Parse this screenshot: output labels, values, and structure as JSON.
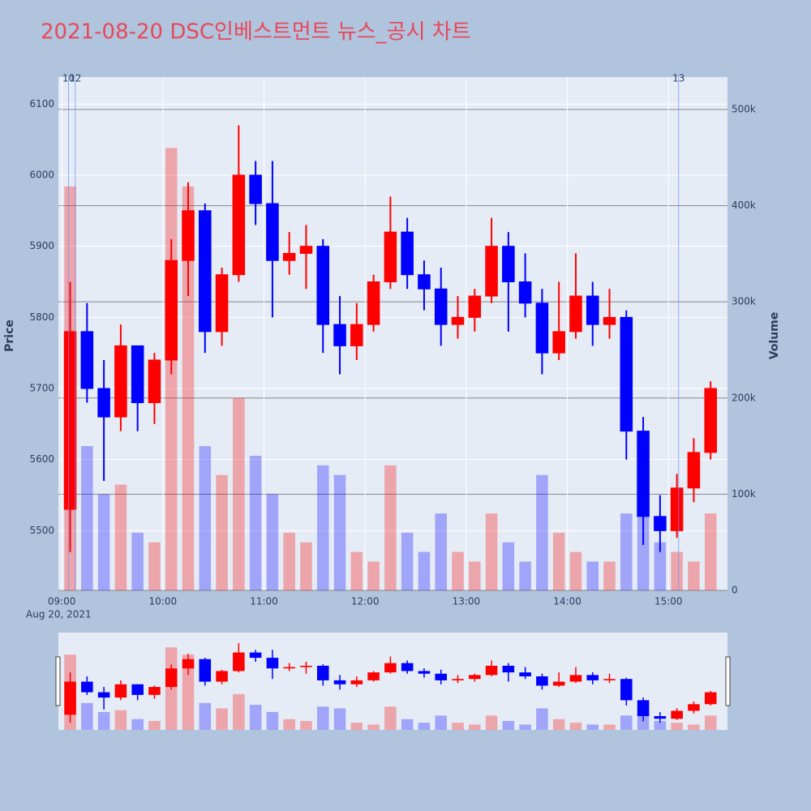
{
  "chart_data": {
    "type": "candlestick",
    "title": "2021-08-20 DSC인베스트먼트 뉴스_공시 차트",
    "y_title": "Price",
    "y2_title": "Volume",
    "x_sublabel": "Aug 20, 2021",
    "increasing_color": "#ff0000",
    "decreasing_color": "#0000ff",
    "x": [
      "09:00",
      "09:10",
      "09:20",
      "09:30",
      "09:40",
      "09:50",
      "10:00",
      "10:10",
      "10:20",
      "10:30",
      "10:40",
      "10:50",
      "11:00",
      "11:10",
      "11:20",
      "11:30",
      "11:40",
      "11:50",
      "12:00",
      "12:10",
      "12:20",
      "12:30",
      "12:40",
      "12:50",
      "13:00",
      "13:10",
      "13:20",
      "13:30",
      "13:40",
      "13:50",
      "14:00",
      "14:10",
      "14:20",
      "14:30",
      "14:40",
      "14:50",
      "15:00",
      "15:10",
      "15:20"
    ],
    "open": [
      5530,
      5780,
      5700,
      5660,
      5760,
      5680,
      5740,
      5880,
      5950,
      5780,
      5860,
      6000,
      5960,
      5880,
      5890,
      5900,
      5790,
      5760,
      5790,
      5850,
      5920,
      5860,
      5840,
      5790,
      5800,
      5830,
      5900,
      5850,
      5820,
      5750,
      5780,
      5830,
      5790,
      5800,
      5640,
      5520,
      5500,
      5560,
      5610
    ],
    "high": [
      5850,
      5820,
      5740,
      5790,
      5760,
      5750,
      5910,
      5990,
      5960,
      5870,
      6070,
      6020,
      6020,
      5920,
      5930,
      5910,
      5830,
      5820,
      5860,
      5970,
      5940,
      5880,
      5870,
      5830,
      5840,
      5940,
      5920,
      5890,
      5840,
      5850,
      5890,
      5850,
      5840,
      5810,
      5660,
      5550,
      5580,
      5630,
      5710
    ],
    "low": [
      5470,
      5680,
      5570,
      5640,
      5640,
      5650,
      5720,
      5830,
      5750,
      5760,
      5850,
      5930,
      5800,
      5860,
      5840,
      5750,
      5720,
      5740,
      5780,
      5840,
      5840,
      5810,
      5760,
      5770,
      5780,
      5820,
      5780,
      5800,
      5720,
      5740,
      5770,
      5760,
      5770,
      5600,
      5480,
      5470,
      5490,
      5540,
      5600
    ],
    "close": [
      5780,
      5700,
      5660,
      5760,
      5680,
      5740,
      5880,
      5950,
      5780,
      5860,
      6000,
      5960,
      5880,
      5890,
      5900,
      5790,
      5760,
      5790,
      5850,
      5920,
      5860,
      5840,
      5790,
      5800,
      5830,
      5900,
      5850,
      5820,
      5750,
      5780,
      5830,
      5790,
      5800,
      5640,
      5520,
      5500,
      5560,
      5610,
      5700
    ],
    "volume": [
      420000,
      150000,
      100000,
      110000,
      60000,
      50000,
      460000,
      420000,
      150000,
      120000,
      200000,
      140000,
      100000,
      60000,
      50000,
      130000,
      120000,
      40000,
      30000,
      130000,
      60000,
      40000,
      80000,
      40000,
      30000,
      80000,
      50000,
      30000,
      120000,
      60000,
      40000,
      30000,
      30000,
      80000,
      120000,
      50000,
      40000,
      30000,
      80000
    ],
    "xlim": [
      "08:58",
      "15:35"
    ],
    "xticks": [
      "09:00",
      "10:00",
      "11:00",
      "12:00",
      "13:00",
      "14:00",
      "15:00"
    ],
    "ylim": [
      5416,
      6138
    ],
    "yticks": [
      5500,
      5600,
      5700,
      5800,
      5900,
      6000,
      6100
    ],
    "y2lim": [
      0,
      533700
    ],
    "y2ticks": [
      0,
      {
        "value": 100000,
        "label": "100k"
      },
      {
        "value": 200000,
        "label": "200k"
      },
      {
        "value": 300000,
        "label": "300k"
      },
      {
        "value": 400000,
        "label": "400k"
      },
      {
        "value": 500000,
        "label": "500k"
      }
    ],
    "vlines": [
      {
        "x": "09:04",
        "label": "10"
      },
      {
        "x": "09:08",
        "label": "12"
      },
      {
        "x": "15:06",
        "label": "13"
      }
    ]
  }
}
